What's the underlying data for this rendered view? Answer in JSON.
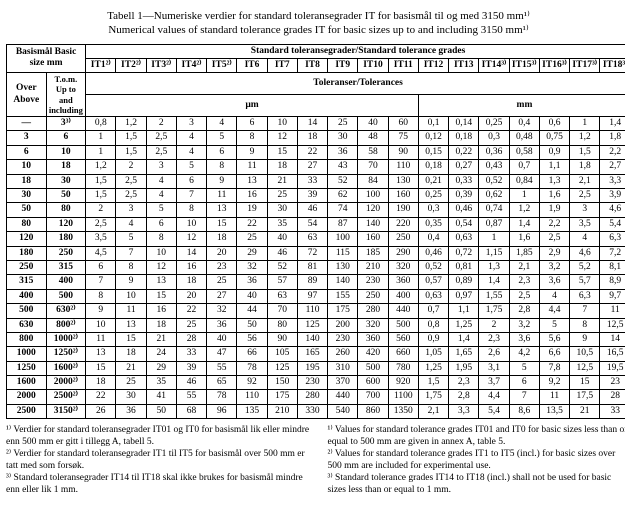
{
  "title_line1": "Tabell 1—Numeriske verdier for standard toleransegrader IT for basismål til og med 3150 mm¹⁾",
  "title_line2": "Numerical values of standard tolerance grades IT for basic sizes up to and including 3150 mm¹⁾",
  "header": {
    "basic": "Basismål\nBasic size\nmm",
    "grades": "Standard toleransegrader/Standard tolerance grades",
    "over": "Over\nAbove",
    "to": "T.o.m.\nUp to and including",
    "tol": "Toleranser/Tolerances",
    "um": "µm",
    "mm": "mm"
  },
  "grade_labels": [
    "IT1²⁾",
    "IT2²⁾",
    "IT3²⁾",
    "IT4²⁾",
    "IT5²⁾",
    "IT6",
    "IT7",
    "IT8",
    "IT9",
    "IT10",
    "IT11",
    "IT12",
    "IT13",
    "IT14³⁾",
    "IT15³⁾",
    "IT16³⁾",
    "IT17³⁾",
    "IT18³⁾"
  ],
  "rows": [
    {
      "over": "—",
      "to": "3³⁾",
      "v": [
        "0,8",
        "1,2",
        "2",
        "3",
        "4",
        "6",
        "10",
        "14",
        "25",
        "40",
        "60",
        "0,1",
        "0,14",
        "0,25",
        "0,4",
        "0,6",
        "1",
        "1,4"
      ]
    },
    {
      "over": "3",
      "to": "6",
      "v": [
        "1",
        "1,5",
        "2,5",
        "4",
        "5",
        "8",
        "12",
        "18",
        "30",
        "48",
        "75",
        "0,12",
        "0,18",
        "0,3",
        "0,48",
        "0,75",
        "1,2",
        "1,8"
      ]
    },
    {
      "over": "6",
      "to": "10",
      "v": [
        "1",
        "1,5",
        "2,5",
        "4",
        "6",
        "9",
        "15",
        "22",
        "36",
        "58",
        "90",
        "0,15",
        "0,22",
        "0,36",
        "0,58",
        "0,9",
        "1,5",
        "2,2"
      ]
    },
    {
      "over": "10",
      "to": "18",
      "v": [
        "1,2",
        "2",
        "3",
        "5",
        "8",
        "11",
        "18",
        "27",
        "43",
        "70",
        "110",
        "0,18",
        "0,27",
        "0,43",
        "0,7",
        "1,1",
        "1,8",
        "2,7"
      ]
    },
    {
      "over": "18",
      "to": "30",
      "v": [
        "1,5",
        "2,5",
        "4",
        "6",
        "9",
        "13",
        "21",
        "33",
        "52",
        "84",
        "130",
        "0,21",
        "0,33",
        "0,52",
        "0,84",
        "1,3",
        "2,1",
        "3,3"
      ]
    },
    {
      "over": "30",
      "to": "50",
      "v": [
        "1,5",
        "2,5",
        "4",
        "7",
        "11",
        "16",
        "25",
        "39",
        "62",
        "100",
        "160",
        "0,25",
        "0,39",
        "0,62",
        "1",
        "1,6",
        "2,5",
        "3,9"
      ]
    },
    {
      "over": "50",
      "to": "80",
      "v": [
        "2",
        "3",
        "5",
        "8",
        "13",
        "19",
        "30",
        "46",
        "74",
        "120",
        "190",
        "0,3",
        "0,46",
        "0,74",
        "1,2",
        "1,9",
        "3",
        "4,6"
      ]
    },
    {
      "over": "80",
      "to": "120",
      "v": [
        "2,5",
        "4",
        "6",
        "10",
        "15",
        "22",
        "35",
        "54",
        "87",
        "140",
        "220",
        "0,35",
        "0,54",
        "0,87",
        "1,4",
        "2,2",
        "3,5",
        "5,4"
      ]
    },
    {
      "over": "120",
      "to": "180",
      "v": [
        "3,5",
        "5",
        "8",
        "12",
        "18",
        "25",
        "40",
        "63",
        "100",
        "160",
        "250",
        "0,4",
        "0,63",
        "1",
        "1,6",
        "2,5",
        "4",
        "6,3"
      ]
    },
    {
      "over": "180",
      "to": "250",
      "v": [
        "4,5",
        "7",
        "10",
        "14",
        "20",
        "29",
        "46",
        "72",
        "115",
        "185",
        "290",
        "0,46",
        "0,72",
        "1,15",
        "1,85",
        "2,9",
        "4,6",
        "7,2"
      ]
    },
    {
      "over": "250",
      "to": "315",
      "v": [
        "6",
        "8",
        "12",
        "16",
        "23",
        "32",
        "52",
        "81",
        "130",
        "210",
        "320",
        "0,52",
        "0,81",
        "1,3",
        "2,1",
        "3,2",
        "5,2",
        "8,1"
      ]
    },
    {
      "over": "315",
      "to": "400",
      "v": [
        "7",
        "9",
        "13",
        "18",
        "25",
        "36",
        "57",
        "89",
        "140",
        "230",
        "360",
        "0,57",
        "0,89",
        "1,4",
        "2,3",
        "3,6",
        "5,7",
        "8,9"
      ]
    },
    {
      "over": "400",
      "to": "500",
      "v": [
        "8",
        "10",
        "15",
        "20",
        "27",
        "40",
        "63",
        "97",
        "155",
        "250",
        "400",
        "0,63",
        "0,97",
        "1,55",
        "2,5",
        "4",
        "6,3",
        "9,7"
      ]
    },
    {
      "over": "500",
      "to": "630²⁾",
      "v": [
        "9",
        "11",
        "16",
        "22",
        "32",
        "44",
        "70",
        "110",
        "175",
        "280",
        "440",
        "0,7",
        "1,1",
        "1,75",
        "2,8",
        "4,4",
        "7",
        "11"
      ]
    },
    {
      "over": "630",
      "to": "800²⁾",
      "v": [
        "10",
        "13",
        "18",
        "25",
        "36",
        "50",
        "80",
        "125",
        "200",
        "320",
        "500",
        "0,8",
        "1,25",
        "2",
        "3,2",
        "5",
        "8",
        "12,5"
      ]
    },
    {
      "over": "800",
      "to": "1000²⁾",
      "v": [
        "11",
        "15",
        "21",
        "28",
        "40",
        "56",
        "90",
        "140",
        "230",
        "360",
        "560",
        "0,9",
        "1,4",
        "2,3",
        "3,6",
        "5,6",
        "9",
        "14"
      ]
    },
    {
      "over": "1000",
      "to": "1250²⁾",
      "v": [
        "13",
        "18",
        "24",
        "33",
        "47",
        "66",
        "105",
        "165",
        "260",
        "420",
        "660",
        "1,05",
        "1,65",
        "2,6",
        "4,2",
        "6,6",
        "10,5",
        "16,5"
      ]
    },
    {
      "over": "1250",
      "to": "1600²⁾",
      "v": [
        "15",
        "21",
        "29",
        "39",
        "55",
        "78",
        "125",
        "195",
        "310",
        "500",
        "780",
        "1,25",
        "1,95",
        "3,1",
        "5",
        "7,8",
        "12,5",
        "19,5"
      ]
    },
    {
      "over": "1600",
      "to": "2000²⁾",
      "v": [
        "18",
        "25",
        "35",
        "46",
        "65",
        "92",
        "150",
        "230",
        "370",
        "600",
        "920",
        "1,5",
        "2,3",
        "3,7",
        "6",
        "9,2",
        "15",
        "23"
      ]
    },
    {
      "over": "2000",
      "to": "2500²⁾",
      "v": [
        "22",
        "30",
        "41",
        "55",
        "78",
        "110",
        "175",
        "280",
        "440",
        "700",
        "1100",
        "1,75",
        "2,8",
        "4,4",
        "7",
        "11",
        "17,5",
        "28"
      ]
    },
    {
      "over": "2500",
      "to": "3150²⁾",
      "v": [
        "26",
        "36",
        "50",
        "68",
        "96",
        "135",
        "210",
        "330",
        "540",
        "860",
        "1350",
        "2,1",
        "3,3",
        "5,4",
        "8,6",
        "13,5",
        "21",
        "33"
      ]
    }
  ],
  "footnotes": {
    "l1": "¹⁾ Verdier for standard toleransegrader IT01 og IT0 for basismål lik eller mindre enn 500 mm er gitt i tillegg A, tabell 5.",
    "l2": "²⁾ Verdier for standard toleransegrader IT1 til IT5 for basismål over 500 mm er tatt med som forsøk.",
    "l3": "³⁾ Standard toleransegrader IT14 til IT18 skal ikke brukes for basismål mindre enn eller lik 1 mm.",
    "r1": "¹⁾ Values for standard tolerance grades IT01 and IT0 for basic sizes less than or equal to 500 mm are given in annex A, table 5.",
    "r2": "²⁾ Values for standard tolerance grades IT1 to IT5 (incl.) for basic sizes over 500 mm are included for experimental use.",
    "r3": "³⁾ Standard tolerance grades IT14 to IT18 (incl.) shall not be used for basic sizes less than or equal to 1 mm."
  },
  "style": {
    "fg": "#000000",
    "bg": "#ffffff",
    "font": "Times New Roman",
    "title_fontsize": 11,
    "cell_fontsize": 9.5,
    "footnote_fontsize": 9.5,
    "um_cols": 11,
    "mm_cols": 7,
    "basic_cols": 2
  }
}
